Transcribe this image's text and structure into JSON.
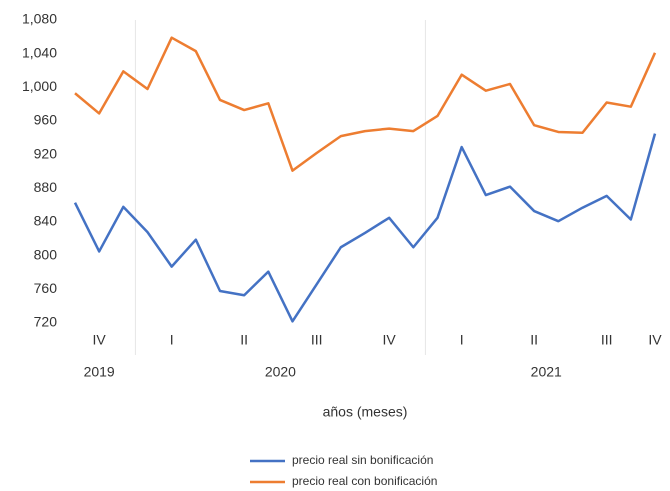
{
  "chart_data": {
    "type": "line",
    "x_label": "años (meses)",
    "categories": [
      null,
      "IV",
      null,
      null,
      "I",
      null,
      null,
      "II",
      null,
      null,
      "III",
      null,
      null,
      "IV",
      null,
      null,
      "I",
      null,
      null,
      "II",
      null,
      null,
      "III",
      null,
      "IV"
    ],
    "years": [
      "2019",
      "2019",
      "2019",
      "2020",
      "2020",
      "2020",
      "2020",
      "2020",
      "2020",
      "2020",
      "2020",
      "2020",
      "2020",
      "2020",
      "2020",
      "2021",
      "2021",
      "2021",
      "2021",
      "2021",
      "2021",
      "2021",
      "2021",
      "2021",
      "2021"
    ],
    "series": [
      {
        "name": "precio real sin bonificación",
        "color": "#4472c4",
        "values": [
          863,
          805,
          858,
          828,
          787,
          819,
          758,
          753,
          781,
          722,
          766,
          810,
          827,
          845,
          810,
          845,
          929,
          872,
          882,
          853,
          841,
          857,
          871,
          843,
          945
        ]
      },
      {
        "name": "precio real con bonificación",
        "color": "#ed7d31",
        "values": [
          993,
          969,
          1019,
          998,
          1059,
          1043,
          985,
          973,
          981,
          901,
          922,
          942,
          948,
          951,
          948,
          966,
          1015,
          996,
          1004,
          955,
          947,
          946,
          982,
          977,
          1041
        ]
      }
    ],
    "ylim": [
      720,
      1080
    ],
    "yticks": [
      720,
      760,
      800,
      840,
      880,
      920,
      960,
      {
        "value": 1000,
        "label": "1,000"
      },
      {
        "value": 1040,
        "label": "1,040"
      },
      {
        "value": 1080,
        "label": "1,080"
      }
    ],
    "grid": false
  }
}
